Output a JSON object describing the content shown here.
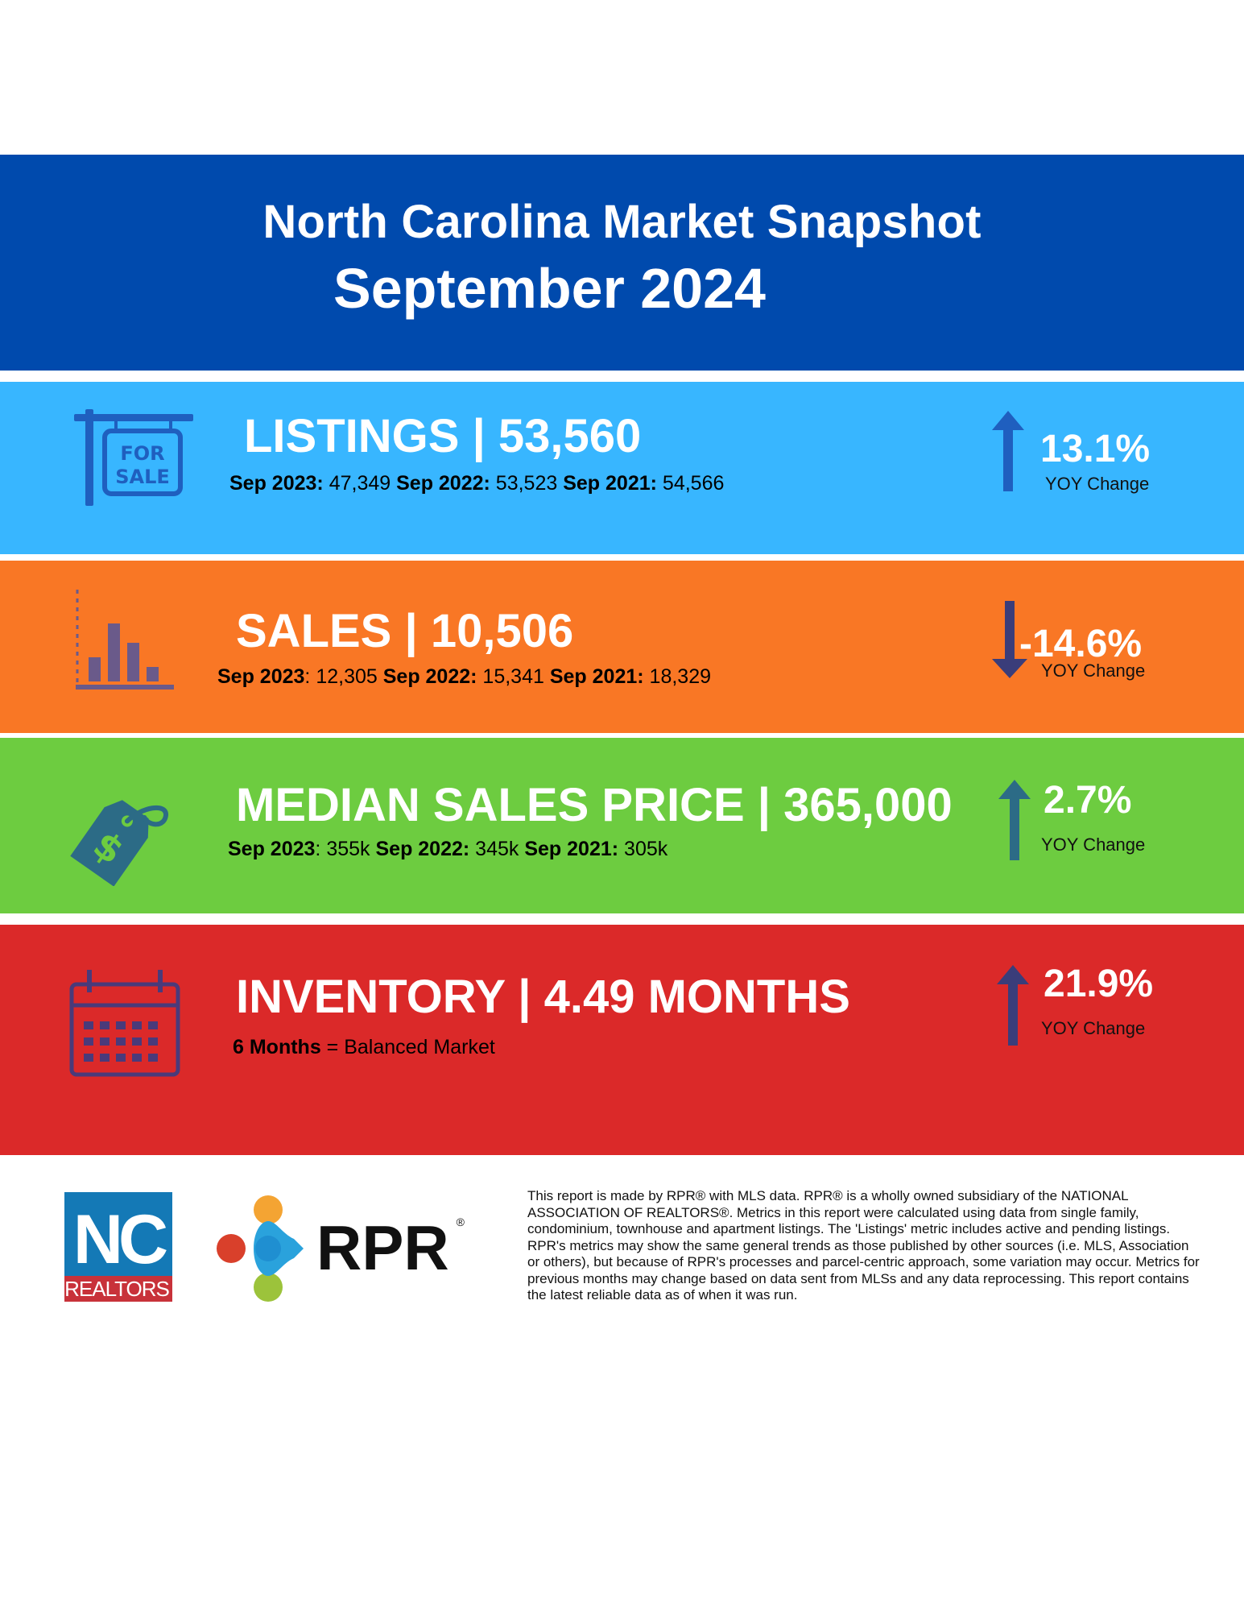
{
  "header": {
    "title": "North Carolina Market Snapshot",
    "subtitle": "September 2024",
    "bg_color": "#004aad"
  },
  "listings": {
    "metric": "LISTINGS | 53,560",
    "history": [
      {
        "label": "Sep 2023:",
        "value": " 47,349 "
      },
      {
        "label": "Sep 2022:",
        "value": " 53,523 "
      },
      {
        "label": "Sep 2021:",
        "value": " 54,566"
      }
    ],
    "change": "13.1%",
    "change_label": "YOY Change",
    "direction": "up",
    "icon": "for-sale-sign-icon",
    "icon_text": [
      "FOR",
      "SALE"
    ],
    "color": "#38b6ff"
  },
  "sales": {
    "metric": "SALES | 10,506",
    "history": [
      {
        "label": "Sep 2023",
        "value": ": 12,305 "
      },
      {
        "label": "Sep 2022:",
        "value": " 15,341  "
      },
      {
        "label": "Sep 2021:",
        "value": " 18,329"
      }
    ],
    "change": "-14.6%",
    "change_label": "YOY Change",
    "direction": "down",
    "icon": "bar-chart-icon",
    "color": "#f97725"
  },
  "price": {
    "metric": "MEDIAN SALES PRICE | 365,000",
    "history": [
      {
        "label": "Sep 2023",
        "value": ": 355k "
      },
      {
        "label": "Sep 2022:",
        "value": " 345k  "
      },
      {
        "label": "Sep 2021:",
        "value": " 305k"
      }
    ],
    "change": "2.7%",
    "change_label": "YOY Change",
    "direction": "up",
    "icon": "price-tag-icon",
    "color": "#6dcc40"
  },
  "inventory": {
    "metric": "INVENTORY | 4.49 MONTHS",
    "note_bold": "6 Months",
    "note_rest": " = Balanced Market",
    "change": "21.9%",
    "change_label": "YOY Change",
    "direction": "up",
    "icon": "calendar-icon",
    "color": "#db2929"
  },
  "footer": {
    "nc_logo_top": "NC",
    "nc_logo_bottom": "REALTORS",
    "rpr_logo": "RPR",
    "disclaimer": "This report is made by RPR® with MLS data. RPR® is a wholly owned subsidiary of the NATIONAL ASSOCIATION OF REALTORS®. Metrics in this report were calculated using data from single family, condominium, townhouse and apartment listings. The 'Listings' metric includes active and pending listings. RPR's metrics may show the same general trends as those published by other sources (i.e. MLS, Association or others), but because of RPR's processes and parcel-centric approach, some variation may occur. Metrics for previous months may change based on data sent from MLSs and any data reprocessing. This report contains the latest reliable data as of when it was run."
  }
}
